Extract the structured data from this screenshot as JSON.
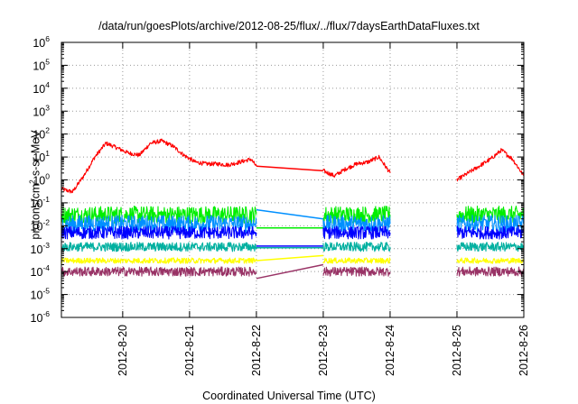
{
  "chart_data": {
    "type": "line",
    "title": "/data/run/goesPlots/archive/2012-08-25/flux/../flux/7daysEarthDataFluxes.txt",
    "ylabel_parts": [
      "protons/cm",
      "2",
      "-s-sr-MeV"
    ],
    "xlabel": "Coordinated Universal Time (UTC)",
    "y_scale": "log",
    "ylim": [
      1e-06,
      1000000.0
    ],
    "y_ticks": [
      {
        "base": "10",
        "exp": "-6"
      },
      {
        "base": "10",
        "exp": "-5"
      },
      {
        "base": "10",
        "exp": "-4"
      },
      {
        "base": "10",
        "exp": "-3"
      },
      {
        "base": "10",
        "exp": "-2"
      },
      {
        "base": "10",
        "exp": "-1"
      },
      {
        "base": "10",
        "exp": "0"
      },
      {
        "base": "10",
        "exp": "1"
      },
      {
        "base": "10",
        "exp": "2"
      },
      {
        "base": "10",
        "exp": "3"
      },
      {
        "base": "10",
        "exp": "4"
      },
      {
        "base": "10",
        "exp": "5"
      },
      {
        "base": "10",
        "exp": "6"
      }
    ],
    "xlim": [
      "2012-08-19 02:00",
      "2012-08-26 00:00"
    ],
    "x_ticks": [
      "2012-8-20",
      "2012-8-21",
      "2012-8-22",
      "2012-8-23",
      "2012-8-24",
      "2012-8-25",
      "2012-8-26"
    ],
    "grid": "dotted",
    "series": [
      {
        "color": "#ff0000",
        "segments": [
          {
            "x": [
              "2012-08-19 02:00",
              "2012-08-19 06:00",
              "2012-08-19 10:00",
              "2012-08-19 14:00",
              "2012-08-19 18:00",
              "2012-08-19 22:00",
              "2012-08-20 02:00",
              "2012-08-20 06:00",
              "2012-08-20 10:00",
              "2012-08-20 14:00",
              "2012-08-20 18:00",
              "2012-08-20 22:00",
              "2012-08-21 02:00",
              "2012-08-21 06:00",
              "2012-08-21 10:00",
              "2012-08-21 14:00",
              "2012-08-21 18:00",
              "2012-08-21 22:00",
              "2012-08-22 00:00"
            ],
            "y": [
              0.4,
              0.3,
              1.5,
              10,
              40,
              25,
              15,
              12,
              40,
              50,
              30,
              12,
              6,
              5,
              5,
              4.5,
              6,
              8,
              4
            ]
          },
          {
            "x": [
              "2012-08-22 00:00",
              "2012-08-23 00:00"
            ],
            "y": [
              4,
              2.5
            ]
          },
          {
            "x": [
              "2012-08-23 00:00",
              "2012-08-23 04:00",
              "2012-08-23 08:00",
              "2012-08-23 12:00",
              "2012-08-23 16:00",
              "2012-08-23 20:00",
              "2012-08-24 00:00"
            ],
            "y": [
              2.5,
              1.5,
              3,
              5,
              6,
              10,
              2
            ]
          },
          {
            "x": [
              "2012-08-25 00:00",
              "2012-08-25 04:00",
              "2012-08-25 08:00",
              "2012-08-25 12:00",
              "2012-08-25 16:00",
              "2012-08-25 20:00",
              "2012-08-26 00:00"
            ],
            "y": [
              1,
              2,
              4,
              8,
              20,
              8,
              1.5
            ]
          }
        ]
      },
      {
        "color": "#00ee00",
        "segments": [
          {
            "x": [
              "2012-08-19 02:00",
              "2012-08-22 00:00"
            ],
            "y": [
              0.03,
              0.03
            ]
          },
          {
            "x": [
              "2012-08-22 00:00",
              "2012-08-23 00:00"
            ],
            "y": [
              0.008,
              0.008
            ]
          },
          {
            "x": [
              "2012-08-23 00:00",
              "2012-08-24 00:00"
            ],
            "y": [
              0.03,
              0.03
            ]
          },
          {
            "x": [
              "2012-08-25 00:00",
              "2012-08-26 00:00"
            ],
            "y": [
              0.03,
              0.03
            ]
          }
        ]
      },
      {
        "color": "#0090ff",
        "segments": [
          {
            "x": [
              "2012-08-19 02:00",
              "2012-08-22 00:00"
            ],
            "y": [
              0.012,
              0.012
            ]
          },
          {
            "x": [
              "2012-08-22 00:00",
              "2012-08-23 00:00"
            ],
            "y": [
              0.05,
              0.02
            ]
          },
          {
            "x": [
              "2012-08-23 00:00",
              "2012-08-24 00:00"
            ],
            "y": [
              0.012,
              0.012
            ]
          },
          {
            "x": [
              "2012-08-25 00:00",
              "2012-08-26 00:00"
            ],
            "y": [
              0.012,
              0.012
            ]
          }
        ]
      },
      {
        "color": "#0000ff",
        "segments": [
          {
            "x": [
              "2012-08-19 02:00",
              "2012-08-22 00:00"
            ],
            "y": [
              0.005,
              0.005
            ]
          },
          {
            "x": [
              "2012-08-22 00:00",
              "2012-08-23 00:00"
            ],
            "y": [
              0.0013,
              0.0013
            ]
          },
          {
            "x": [
              "2012-08-23 00:00",
              "2012-08-24 00:00"
            ],
            "y": [
              0.005,
              0.005
            ]
          },
          {
            "x": [
              "2012-08-25 00:00",
              "2012-08-26 00:00"
            ],
            "y": [
              0.005,
              0.005
            ]
          }
        ]
      },
      {
        "color": "#00b0a0",
        "segments": [
          {
            "x": [
              "2012-08-19 02:00",
              "2012-08-22 00:00"
            ],
            "y": [
              0.0012,
              0.0012
            ]
          },
          {
            "x": [
              "2012-08-22 00:00",
              "2012-08-23 00:00"
            ],
            "y": [
              0.0011,
              0.0011
            ]
          },
          {
            "x": [
              "2012-08-23 00:00",
              "2012-08-24 00:00"
            ],
            "y": [
              0.0012,
              0.0012
            ]
          },
          {
            "x": [
              "2012-08-25 00:00",
              "2012-08-26 00:00"
            ],
            "y": [
              0.0012,
              0.0012
            ]
          }
        ]
      },
      {
        "color": "#ffff00",
        "segments": [
          {
            "x": [
              "2012-08-19 02:00",
              "2012-08-22 00:00"
            ],
            "y": [
              0.0003,
              0.0003
            ]
          },
          {
            "x": [
              "2012-08-22 00:00",
              "2012-08-23 00:00"
            ],
            "y": [
              0.0003,
              0.0005
            ]
          },
          {
            "x": [
              "2012-08-23 00:00",
              "2012-08-24 00:00"
            ],
            "y": [
              0.0003,
              0.0003
            ]
          },
          {
            "x": [
              "2012-08-25 00:00",
              "2012-08-26 00:00"
            ],
            "y": [
              0.0003,
              0.0003
            ]
          }
        ]
      },
      {
        "color": "#993366",
        "segments": [
          {
            "x": [
              "2012-08-19 02:00",
              "2012-08-22 00:00"
            ],
            "y": [
              0.0001,
              0.0001
            ]
          },
          {
            "x": [
              "2012-08-22 00:00",
              "2012-08-23 00:00"
            ],
            "y": [
              5e-05,
              0.0002
            ]
          },
          {
            "x": [
              "2012-08-23 00:00",
              "2012-08-24 00:00"
            ],
            "y": [
              0.0001,
              0.0001
            ]
          },
          {
            "x": [
              "2012-08-25 00:00",
              "2012-08-26 00:00"
            ],
            "y": [
              0.0001,
              0.0001
            ]
          }
        ]
      }
    ]
  }
}
